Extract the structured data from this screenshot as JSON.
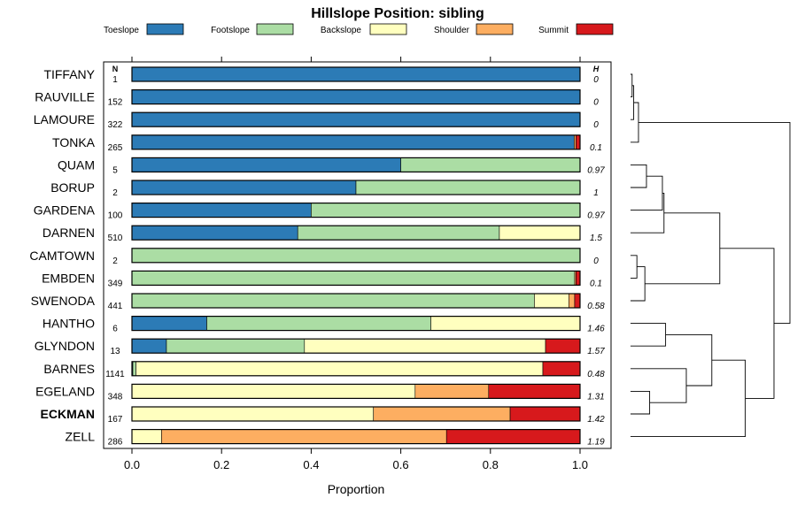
{
  "chart_data": {
    "type": "bar",
    "orientation": "horizontal-stacked",
    "title": "Hillslope Position: sibling",
    "xlabel": "Proportion",
    "xlim": [
      0,
      1
    ],
    "xticks": [
      "0.0",
      "0.2",
      "0.4",
      "0.6",
      "0.8",
      "1.0"
    ],
    "xtick_values": [
      0,
      0.2,
      0.4,
      0.6,
      0.8,
      1.0
    ],
    "n_header": "N",
    "h_header": "H",
    "legend_position": "top",
    "series": [
      {
        "name": "Toeslope",
        "color": "#2c7bb6"
      },
      {
        "name": "Footslope",
        "color": "#abdda4"
      },
      {
        "name": "Backslope",
        "color": "#ffffbf"
      },
      {
        "name": "Shoulder",
        "color": "#fdae61"
      },
      {
        "name": "Summit",
        "color": "#d7191c"
      }
    ],
    "categories": [
      {
        "name": "TIFFANY",
        "n": "1",
        "h": "0",
        "bold": false,
        "values": [
          1.0,
          0,
          0,
          0,
          0
        ]
      },
      {
        "name": "RAUVILLE",
        "n": "152",
        "h": "0",
        "bold": false,
        "values": [
          1.0,
          0,
          0,
          0,
          0
        ]
      },
      {
        "name": "LAMOURE",
        "n": "322",
        "h": "0",
        "bold": false,
        "values": [
          1.0,
          0,
          0,
          0,
          0
        ]
      },
      {
        "name": "TONKA",
        "n": "265",
        "h": "0.1",
        "bold": false,
        "values": [
          0.987,
          0,
          0,
          0.004,
          0.009
        ]
      },
      {
        "name": "QUAM",
        "n": "5",
        "h": "0.97",
        "bold": false,
        "values": [
          0.6,
          0.4,
          0,
          0,
          0
        ]
      },
      {
        "name": "BORUP",
        "n": "2",
        "h": "1",
        "bold": false,
        "values": [
          0.5,
          0.5,
          0,
          0,
          0
        ]
      },
      {
        "name": "GARDENA",
        "n": "100",
        "h": "0.97",
        "bold": false,
        "values": [
          0.4,
          0.6,
          0,
          0,
          0
        ]
      },
      {
        "name": "DARNEN",
        "n": "510",
        "h": "1.5",
        "bold": false,
        "values": [
          0.37,
          0.45,
          0.18,
          0,
          0
        ]
      },
      {
        "name": "CAMTOWN",
        "n": "2",
        "h": "0",
        "bold": false,
        "values": [
          0,
          1.0,
          0,
          0,
          0
        ]
      },
      {
        "name": "EMBDEN",
        "n": "349",
        "h": "0.1",
        "bold": false,
        "values": [
          0,
          0.988,
          0,
          0.003,
          0.009
        ]
      },
      {
        "name": "SWENODA",
        "n": "441",
        "h": "0.58",
        "bold": false,
        "values": [
          0,
          0.898,
          0.077,
          0.013,
          0.012
        ]
      },
      {
        "name": "HANTHO",
        "n": "6",
        "h": "1.46",
        "bold": false,
        "values": [
          0.167,
          0.5,
          0.333,
          0,
          0
        ]
      },
      {
        "name": "GLYNDON",
        "n": "13",
        "h": "1.57",
        "bold": false,
        "values": [
          0.077,
          0.308,
          0.538,
          0,
          0.077
        ]
      },
      {
        "name": "BARNES",
        "n": "1141",
        "h": "0.48",
        "bold": false,
        "values": [
          0.002,
          0.007,
          0.908,
          0,
          0.083
        ]
      },
      {
        "name": "EGELAND",
        "n": "348",
        "h": "1.31",
        "bold": false,
        "values": [
          0,
          0,
          0.632,
          0.164,
          0.204
        ]
      },
      {
        "name": "ECKMAN",
        "n": "167",
        "h": "1.42",
        "bold": true,
        "values": [
          0,
          0,
          0.539,
          0.305,
          0.156
        ]
      },
      {
        "name": "ZELL",
        "n": "286",
        "h": "1.19",
        "bold": false,
        "values": [
          0,
          0,
          0.066,
          0.636,
          0.298
        ]
      }
    ],
    "dendrogram": {
      "leaf_order": [
        "TIFFANY",
        "RAUVILLE",
        "LAMOURE",
        "TONKA",
        "QUAM",
        "BORUP",
        "GARDENA",
        "DARNEN",
        "CAMTOWN",
        "EMBDEN",
        "SWENODA",
        "HANTHO",
        "GLYNDON",
        "BARNES",
        "EGELAND",
        "ECKMAN",
        "ZELL"
      ],
      "merges": [
        {
          "a": "L0",
          "b": "L1",
          "height": 0.01
        },
        {
          "a": "M0",
          "b": "L2",
          "height": 0.02
        },
        {
          "a": "M1",
          "b": "L3",
          "height": 0.05
        },
        {
          "a": "L4",
          "b": "L5",
          "height": 0.1
        },
        {
          "a": "M3",
          "b": "L6",
          "height": 0.2
        },
        {
          "a": "M4",
          "b": "L7",
          "height": 0.21
        },
        {
          "a": "L8",
          "b": "L9",
          "height": 0.04
        },
        {
          "a": "M6",
          "b": "L10",
          "height": 0.09
        },
        {
          "a": "M5",
          "b": "M7",
          "height": 0.56
        },
        {
          "a": "L11",
          "b": "L12",
          "height": 0.22
        },
        {
          "a": "L14",
          "b": "L15",
          "height": 0.12
        },
        {
          "a": "L13",
          "b": "M10",
          "height": 0.35
        },
        {
          "a": "M9",
          "b": "M11",
          "height": 0.51
        },
        {
          "a": "M12",
          "b": "L16",
          "height": 0.72
        },
        {
          "a": "M8",
          "b": "M13",
          "height": 0.9
        },
        {
          "a": "M2",
          "b": "M14",
          "height": 1.0
        }
      ]
    }
  }
}
